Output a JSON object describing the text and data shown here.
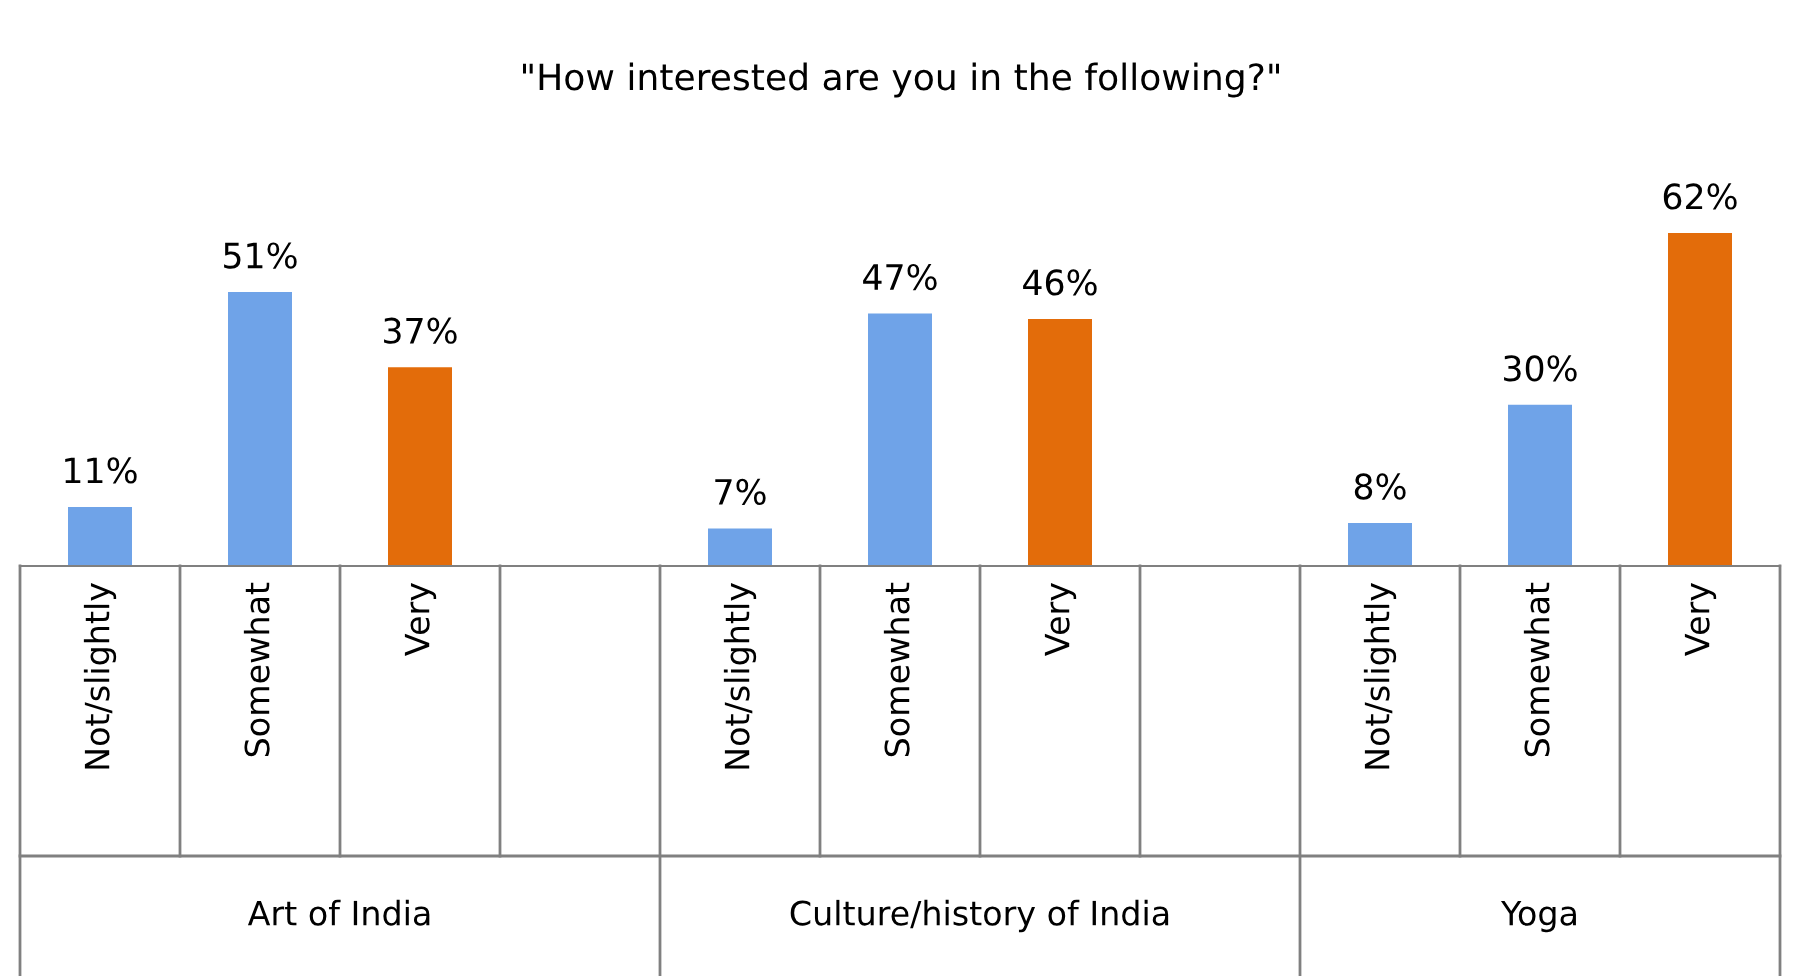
{
  "chart_data": {
    "type": "bar",
    "title": "\"How interested are you in the following?\"",
    "categories": [
      "Not/slightly",
      "Somewhat",
      "Very",
      null,
      "Not/slightly",
      "Somewhat",
      "Very",
      null,
      "Not/slightly",
      "Somewhat",
      "Very"
    ],
    "values": [
      11,
      51,
      37,
      null,
      7,
      47,
      46,
      null,
      8,
      30,
      62
    ],
    "value_labels": [
      "11%",
      "51%",
      "37%",
      null,
      "7%",
      "47%",
      "46%",
      null,
      "8%",
      "30%",
      "62%"
    ],
    "colors": [
      "#6fa3e8",
      "#6fa3e8",
      "#e36c0a",
      null,
      "#6fa3e8",
      "#6fa3e8",
      "#e36c0a",
      null,
      "#6fa3e8",
      "#6fa3e8",
      "#e36c0a"
    ],
    "annotations": [
      "Art of India",
      "Culture/history of India",
      "Yoga"
    ],
    "legend": false
  }
}
